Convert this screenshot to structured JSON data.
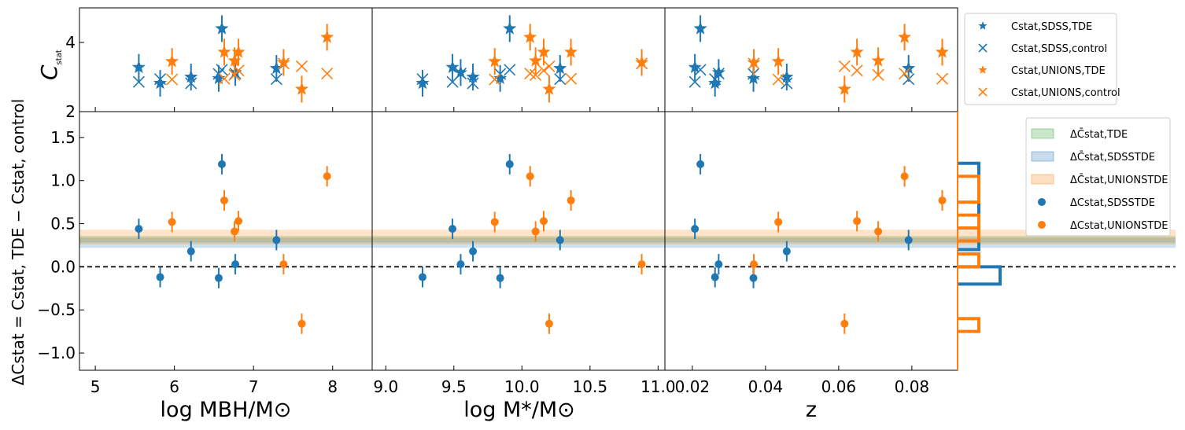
{
  "figure": {
    "top_ylabel": {
      "main": "C",
      "sub": "stat"
    },
    "bottom_ylabel": {
      "text": "ΔCstat = Cstat, TDE − Cstat, control"
    },
    "xlabels": [
      "log MBH/M⊙",
      "log M*/M⊙",
      "z"
    ]
  },
  "colors": {
    "sdss": "#1f77b4",
    "unions": "#ff7f0e",
    "combined_band": "#2ca02c"
  },
  "legend_top": [
    {
      "label": "Cstat,SDSS,TDE",
      "marker": "star",
      "color": "#1f77b4"
    },
    {
      "label": "Cstat,SDSS,control",
      "marker": "cross",
      "color": "#1f77b4"
    },
    {
      "label": "Cstat,UNIONS,TDE",
      "marker": "star",
      "color": "#ff7f0e"
    },
    {
      "label": "Cstat,UNIONS,control",
      "marker": "cross",
      "color": "#ff7f0e"
    }
  ],
  "legend_bottom": [
    {
      "label": "ΔC̄stat,TDE",
      "marker": "band",
      "color": "#2ca02c"
    },
    {
      "label": "ΔC̄stat,SDSSTDE",
      "marker": "band",
      "color": "#1f77b4"
    },
    {
      "label": "ΔC̄stat,UNIONSTDE",
      "marker": "band",
      "color": "#ff7f0e"
    },
    {
      "label": "ΔCstat,SDSSTDE",
      "marker": "dot",
      "color": "#1f77b4"
    },
    {
      "label": "ΔCstat,UNIONSTDE",
      "marker": "dot",
      "color": "#ff7f0e"
    }
  ],
  "chart_data": {
    "type": "scatter",
    "top_ylim": [
      2,
      5
    ],
    "top_yticks": [
      2,
      4
    ],
    "bottom_ylim": [
      -1.2,
      1.8
    ],
    "bottom_yticks": [
      -1.0,
      -0.5,
      0.0,
      0.5,
      1.0,
      1.5
    ],
    "zero_line": 0.0,
    "bands": [
      {
        "name": "ΔC̄stat,TDE",
        "low": 0.28,
        "high": 0.36
      },
      {
        "name": "ΔC̄stat,SDSSTDE",
        "low": 0.22,
        "high": 0.34
      },
      {
        "name": "ΔC̄stat,UNIONSTDE",
        "low": 0.26,
        "high": 0.43
      }
    ],
    "panels": [
      {
        "xlabel": "log MBH/M⊙",
        "xlim": [
          4.8,
          8.5
        ],
        "xticks": [
          5,
          6,
          7,
          8
        ],
        "xticklabels": [
          "5",
          "6",
          "7",
          "8"
        ]
      },
      {
        "xlabel": "log M*/M⊙",
        "xlim": [
          8.9,
          11.05
        ],
        "xticks": [
          9.0,
          9.5,
          10.0,
          10.5,
          11.0
        ],
        "xticklabels": [
          "9.0",
          "9.5",
          "10.0",
          "10.5",
          "11.0"
        ]
      },
      {
        "xlabel": "z",
        "xlim": [
          0.0125,
          0.0925
        ],
        "xticks": [
          0.02,
          0.04,
          0.06,
          0.08
        ],
        "xticklabels": [
          "0.02",
          "0.04",
          "0.06",
          "0.08"
        ]
      }
    ],
    "sdss": [
      {
        "mbh": 5.55,
        "mstar": 9.49,
        "z": 0.0207,
        "c_tde": 3.28,
        "c_ctrl": 2.86,
        "dc": 0.44
      },
      {
        "mbh": 5.82,
        "mstar": 9.27,
        "z": 0.0262,
        "c_tde": 2.82,
        "c_ctrl": 2.94,
        "dc": -0.12
      },
      {
        "mbh": 6.21,
        "mstar": 9.64,
        "z": 0.0458,
        "c_tde": 3.0,
        "c_ctrl": 2.82,
        "dc": 0.18
      },
      {
        "mbh": 6.56,
        "mstar": 9.84,
        "z": 0.0367,
        "c_tde": 2.96,
        "c_ctrl": 3.09,
        "dc": -0.13
      },
      {
        "mbh": 6.6,
        "mstar": 9.91,
        "z": 0.0222,
        "c_tde": 4.4,
        "c_ctrl": 3.21,
        "dc": 1.19
      },
      {
        "mbh": 6.77,
        "mstar": 9.55,
        "z": 0.0272,
        "c_tde": 3.13,
        "c_ctrl": 3.1,
        "dc": 0.03
      },
      {
        "mbh": 7.29,
        "mstar": 10.28,
        "z": 0.0791,
        "c_tde": 3.25,
        "c_ctrl": 2.94,
        "dc": 0.31
      }
    ],
    "unions": [
      {
        "mbh": 5.97,
        "mstar": 9.8,
        "z": 0.0435,
        "c_tde": 3.45,
        "c_ctrl": 2.93,
        "dc": 0.52
      },
      {
        "mbh": 6.63,
        "mstar": 10.36,
        "z": 0.0883,
        "c_tde": 3.72,
        "c_ctrl": 2.95,
        "dc": 0.77
      },
      {
        "mbh": 6.76,
        "mstar": 10.1,
        "z": 0.0708,
        "c_tde": 3.47,
        "c_ctrl": 3.06,
        "dc": 0.41
      },
      {
        "mbh": 6.81,
        "mstar": 10.16,
        "z": 0.065,
        "c_tde": 3.72,
        "c_ctrl": 3.19,
        "dc": 0.53
      },
      {
        "mbh": 7.38,
        "mstar": 10.88,
        "z": 0.0368,
        "c_tde": 3.42,
        "c_ctrl": 3.39,
        "dc": 0.03
      },
      {
        "mbh": 7.61,
        "mstar": 10.2,
        "z": 0.0616,
        "c_tde": 2.65,
        "c_ctrl": 3.31,
        "dc": -0.66
      },
      {
        "mbh": 7.93,
        "mstar": 10.06,
        "z": 0.078,
        "c_tde": 4.15,
        "c_ctrl": 3.1,
        "dc": 1.05
      }
    ],
    "histogram": {
      "orientation": "horizontal",
      "y_range": [
        -1.2,
        1.8
      ],
      "sdss_bins": [
        {
          "low": -0.2,
          "high": 0.0,
          "count": 2
        },
        {
          "low": 0.2,
          "high": 0.45,
          "count": 1
        },
        {
          "low": 0.45,
          "high": 1.2,
          "count": 1
        }
      ],
      "unions_bins": [
        {
          "low": -0.75,
          "high": -0.6,
          "count": 1
        },
        {
          "low": 0.0,
          "high": 0.15,
          "count": 1
        },
        {
          "low": 0.45,
          "high": 0.6,
          "count": 1
        },
        {
          "low": 0.3,
          "high": 0.45,
          "count": 1
        },
        {
          "low": 0.75,
          "high": 1.05,
          "count": 1
        }
      ]
    }
  }
}
